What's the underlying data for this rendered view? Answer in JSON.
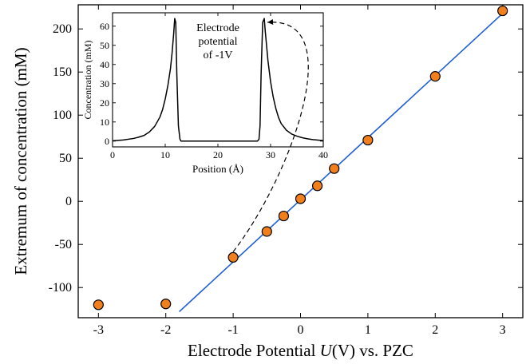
{
  "chart_data": [
    {
      "type": "scatter",
      "xlabel_parts": [
        "Electrode Potential ",
        "U",
        "(V) vs. PZC"
      ],
      "ylabel": "Extremum of concentration (mM)",
      "xlim": [
        -3.3,
        3.3
      ],
      "ylim": [
        -135,
        228
      ],
      "xticks": [
        -3,
        -2,
        -1,
        0,
        1,
        2,
        3
      ],
      "xtick_labels": [
        "-3",
        "-2",
        "-1",
        "0",
        "1",
        "2",
        "3"
      ],
      "yticks": [
        -100,
        -50,
        0,
        50,
        100,
        150,
        200
      ],
      "ytick_labels": [
        "-100",
        "-50",
        "0",
        "50",
        "100",
        "150",
        "200"
      ],
      "grid": false,
      "series": [
        {
          "type": "scatter",
          "color": "#f07f1c",
          "points": [
            {
              "x": -3,
              "y": -120
            },
            {
              "x": -2,
              "y": -119
            },
            {
              "x": -1,
              "y": -65
            },
            {
              "x": -0.5,
              "y": -35
            },
            {
              "x": -0.25,
              "y": -17
            },
            {
              "x": 0,
              "y": 3
            },
            {
              "x": 0.25,
              "y": 18
            },
            {
              "x": 0.5,
              "y": 38
            },
            {
              "x": 1,
              "y": 71
            },
            {
              "x": 2,
              "y": 145
            },
            {
              "x": 3,
              "y": 221
            }
          ]
        },
        {
          "type": "line",
          "color": "#1f5fd6",
          "x": [
            -1.8,
            3
          ],
          "y": [
            -128,
            218
          ]
        }
      ],
      "annotation": {
        "type": "dashed-arrow",
        "from": {
          "x": -1,
          "y": -65
        },
        "to_inset": {
          "x": 28.5,
          "y": 62
        }
      }
    },
    {
      "type": "line",
      "role": "inset",
      "title_lines": [
        "Electrode",
        "potential",
        "of -1V"
      ],
      "xlabel": "Position (Å)",
      "ylabel": "Concentration (mM)",
      "xlim": [
        0,
        40
      ],
      "ylim": [
        -3,
        67
      ],
      "xticks": [
        0,
        10,
        20,
        30,
        40
      ],
      "xtick_labels": [
        "0",
        "10",
        "20",
        "30",
        "40"
      ],
      "yticks": [
        0,
        10,
        20,
        30,
        40,
        50,
        60
      ],
      "ytick_labels": [
        "0",
        "10",
        "20",
        "30",
        "40",
        "50",
        "60"
      ],
      "series": [
        {
          "color": "#000000",
          "x": [
            0,
            2,
            4,
            5,
            6,
            7,
            8,
            9,
            9.5,
            10,
            10.5,
            11,
            11.3,
            11.6,
            11.8,
            12,
            12.2,
            12.5,
            12.8,
            13,
            16,
            20,
            24,
            27.5,
            27.8,
            28,
            28.2,
            28.5,
            28.8,
            29,
            29.5,
            30,
            30.5,
            31,
            31.5,
            32,
            33,
            34,
            35,
            36,
            37,
            38,
            40
          ],
          "y": [
            0.2,
            0.6,
            1.4,
            2.1,
            3,
            4.8,
            7.7,
            12.6,
            16.5,
            22,
            29,
            38,
            46,
            56,
            64,
            62,
            35,
            8,
            1,
            0,
            0,
            0,
            0,
            0,
            1,
            8,
            35,
            62,
            64,
            57,
            42,
            31,
            23,
            17,
            12.4,
            9.2,
            5.7,
            3.7,
            2.6,
            1.8,
            1.2,
            0.8,
            0.3
          ]
        }
      ]
    }
  ]
}
